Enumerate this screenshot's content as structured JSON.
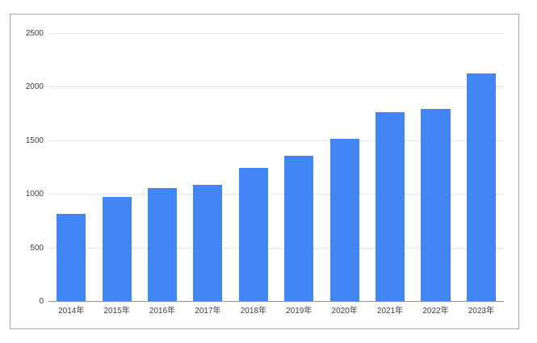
{
  "chart_data": {
    "type": "bar",
    "title": "",
    "xlabel": "",
    "ylabel": "",
    "categories": [
      "2014年",
      "2015年",
      "2016年",
      "2017年",
      "2018年",
      "2019年",
      "2020年",
      "2021年",
      "2022年",
      "2023年"
    ],
    "values": [
      820,
      980,
      1060,
      1090,
      1250,
      1360,
      1520,
      1770,
      1800,
      2130
    ],
    "ylim": [
      0,
      2500
    ],
    "yticks": [
      0,
      500,
      1000,
      1500,
      2000,
      2500
    ],
    "ytick_labels": [
      "0",
      "500",
      "1000",
      "1500",
      "2000",
      "2500"
    ],
    "grid": true,
    "legend": "none",
    "bar_count": 10,
    "colors": {
      "bar": "#4285f4",
      "gridline": "#e6e6e6",
      "axis_line": "#949494",
      "tick_label": "#404040",
      "chart_border": "#a6a6a6",
      "background": "#ffffff"
    }
  }
}
